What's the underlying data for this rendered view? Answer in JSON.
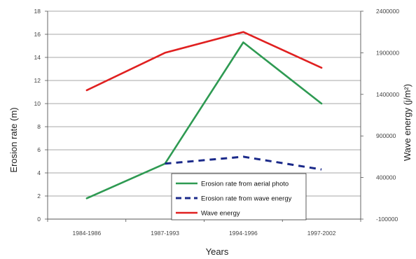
{
  "chart_data": {
    "type": "line",
    "categories": [
      "1984-1986",
      "1987-1993",
      "1994-1996",
      "1997-2002"
    ],
    "xlabel": "Years",
    "ylabel": "Erosion rate (m)",
    "y2label": "Wave energy (j/m²)",
    "ylim": [
      0,
      18
    ],
    "y_ticks": [
      0,
      2,
      4,
      6,
      8,
      10,
      12,
      14,
      16,
      18
    ],
    "y2lim": [
      -100000,
      2400000
    ],
    "y2_ticks": [
      -100000,
      400000,
      900000,
      1400000,
      1900000,
      2400000
    ],
    "grid": true,
    "legend_position": "lower-center",
    "series": [
      {
        "name": "Erosion rate from aerial photo",
        "axis": "left",
        "color": "#2e9a52",
        "dash": "solid",
        "values": [
          1.8,
          4.8,
          15.3,
          10.0
        ]
      },
      {
        "name": "Erosion rate from wave energy",
        "axis": "left",
        "color": "#1b2a8a",
        "dash": "dashed",
        "values": [
          null,
          4.8,
          5.4,
          4.3
        ]
      },
      {
        "name": "Wave energy",
        "axis": "right",
        "color": "#e02020",
        "dash": "solid",
        "values": [
          1450000,
          1900000,
          2150000,
          1720000
        ]
      }
    ]
  }
}
